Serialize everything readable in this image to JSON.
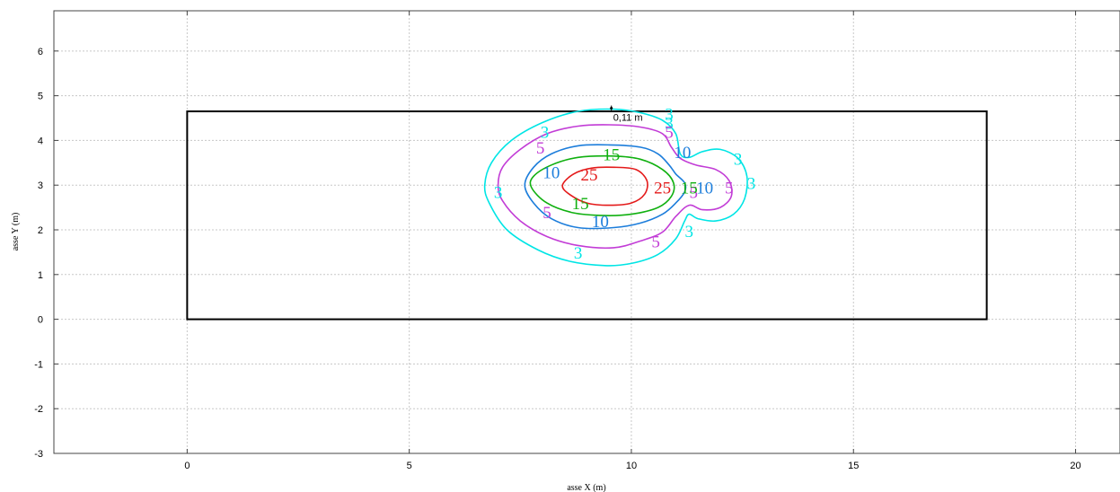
{
  "chart_data": {
    "type": "contour",
    "xlabel": "asse X (m)",
    "ylabel": "asse Y (m)",
    "xlim": [
      -3,
      21
    ],
    "ylim": [
      -3,
      6.9
    ],
    "x_ticks": [
      0,
      5,
      10,
      15,
      20
    ],
    "y_ticks": [
      -3,
      -2,
      -1,
      0,
      1,
      2,
      3,
      4,
      5,
      6
    ],
    "grid": true,
    "room_outline": {
      "x": [
        0,
        18
      ],
      "y": [
        0,
        4.65
      ]
    },
    "annotation": {
      "label": "0,11 m",
      "x": 9.55,
      "y": 4.72
    },
    "contours": [
      {
        "level": "3",
        "color": "#00e5e5",
        "points": [
          [
            9.6,
            4.7
          ],
          [
            10.2,
            4.62
          ],
          [
            10.7,
            4.45
          ],
          [
            11.0,
            4.15
          ],
          [
            11.1,
            3.7
          ],
          [
            11.3,
            3.62
          ],
          [
            11.6,
            3.75
          ],
          [
            12.0,
            3.8
          ],
          [
            12.4,
            3.6
          ],
          [
            12.6,
            3.2
          ],
          [
            12.55,
            2.7
          ],
          [
            12.3,
            2.35
          ],
          [
            11.9,
            2.2
          ],
          [
            11.5,
            2.25
          ],
          [
            11.3,
            2.35
          ],
          [
            11.2,
            2.2
          ],
          [
            11.0,
            1.8
          ],
          [
            10.6,
            1.45
          ],
          [
            10.0,
            1.25
          ],
          [
            9.4,
            1.2
          ],
          [
            8.6,
            1.3
          ],
          [
            7.9,
            1.55
          ],
          [
            7.2,
            2.0
          ],
          [
            6.8,
            2.6
          ],
          [
            6.7,
            3.0
          ],
          [
            6.85,
            3.5
          ],
          [
            7.3,
            4.0
          ],
          [
            8.0,
            4.4
          ],
          [
            8.8,
            4.65
          ],
          [
            9.6,
            4.7
          ]
        ],
        "labels": [
          [
            8.05,
            4.2
          ],
          [
            10.85,
            4.6
          ],
          [
            10.85,
            4.4
          ],
          [
            12.4,
            3.6
          ],
          [
            12.7,
            3.05
          ],
          [
            11.3,
            1.98
          ],
          [
            8.8,
            1.5
          ],
          [
            7.0,
            2.85
          ]
        ]
      },
      {
        "level": "5",
        "color": "#c23cd6",
        "points": [
          [
            9.5,
            4.35
          ],
          [
            10.2,
            4.3
          ],
          [
            10.7,
            4.15
          ],
          [
            10.9,
            3.85
          ],
          [
            11.1,
            3.6
          ],
          [
            11.45,
            3.45
          ],
          [
            11.9,
            3.35
          ],
          [
            12.2,
            3.1
          ],
          [
            12.25,
            2.75
          ],
          [
            12.0,
            2.5
          ],
          [
            11.6,
            2.45
          ],
          [
            11.3,
            2.55
          ],
          [
            11.0,
            2.3
          ],
          [
            10.7,
            1.95
          ],
          [
            10.2,
            1.75
          ],
          [
            9.6,
            1.6
          ],
          [
            8.8,
            1.65
          ],
          [
            8.1,
            1.85
          ],
          [
            7.5,
            2.2
          ],
          [
            7.1,
            2.65
          ],
          [
            7.0,
            3.0
          ],
          [
            7.1,
            3.4
          ],
          [
            7.5,
            3.8
          ],
          [
            8.1,
            4.15
          ],
          [
            8.8,
            4.32
          ],
          [
            9.5,
            4.35
          ]
        ],
        "labels": [
          [
            7.95,
            3.85
          ],
          [
            10.85,
            4.2
          ],
          [
            12.2,
            2.95
          ],
          [
            11.4,
            2.85
          ],
          [
            8.1,
            2.4
          ],
          [
            10.55,
            1.75
          ]
        ]
      },
      {
        "level": "10",
        "color": "#1c7ddb",
        "points": [
          [
            9.5,
            3.9
          ],
          [
            10.2,
            3.85
          ],
          [
            10.6,
            3.7
          ],
          [
            10.85,
            3.45
          ],
          [
            11.0,
            3.25
          ],
          [
            11.2,
            3.05
          ],
          [
            11.2,
            2.85
          ],
          [
            11.0,
            2.6
          ],
          [
            10.7,
            2.35
          ],
          [
            10.2,
            2.15
          ],
          [
            9.6,
            2.05
          ],
          [
            8.8,
            2.05
          ],
          [
            8.2,
            2.25
          ],
          [
            7.8,
            2.6
          ],
          [
            7.6,
            3.0
          ],
          [
            7.8,
            3.4
          ],
          [
            8.2,
            3.7
          ],
          [
            8.8,
            3.88
          ],
          [
            9.5,
            3.9
          ]
        ],
        "labels": [
          [
            8.2,
            3.3
          ],
          [
            11.15,
            3.75
          ],
          [
            11.65,
            2.95
          ],
          [
            9.3,
            2.2
          ]
        ]
      },
      {
        "level": "15",
        "color": "#10b010",
        "points": [
          [
            9.6,
            3.65
          ],
          [
            10.2,
            3.58
          ],
          [
            10.7,
            3.35
          ],
          [
            10.95,
            3.05
          ],
          [
            10.9,
            2.75
          ],
          [
            10.6,
            2.5
          ],
          [
            10.0,
            2.35
          ],
          [
            9.4,
            2.32
          ],
          [
            8.7,
            2.38
          ],
          [
            8.1,
            2.6
          ],
          [
            7.75,
            2.95
          ],
          [
            7.8,
            3.2
          ],
          [
            8.2,
            3.45
          ],
          [
            8.8,
            3.62
          ],
          [
            9.6,
            3.65
          ]
        ],
        "labels": [
          [
            9.55,
            3.7
          ],
          [
            11.3,
            2.95
          ],
          [
            8.85,
            2.6
          ]
        ]
      },
      {
        "level": "25",
        "color": "#e41a1a",
        "points": [
          [
            9.6,
            3.4
          ],
          [
            10.1,
            3.35
          ],
          [
            10.35,
            3.1
          ],
          [
            10.3,
            2.8
          ],
          [
            10.0,
            2.6
          ],
          [
            9.5,
            2.55
          ],
          [
            9.0,
            2.6
          ],
          [
            8.6,
            2.8
          ],
          [
            8.45,
            3.0
          ],
          [
            8.7,
            3.25
          ],
          [
            9.1,
            3.38
          ],
          [
            9.6,
            3.4
          ]
        ],
        "labels": [
          [
            9.05,
            3.25
          ],
          [
            10.7,
            2.95
          ]
        ]
      }
    ]
  }
}
